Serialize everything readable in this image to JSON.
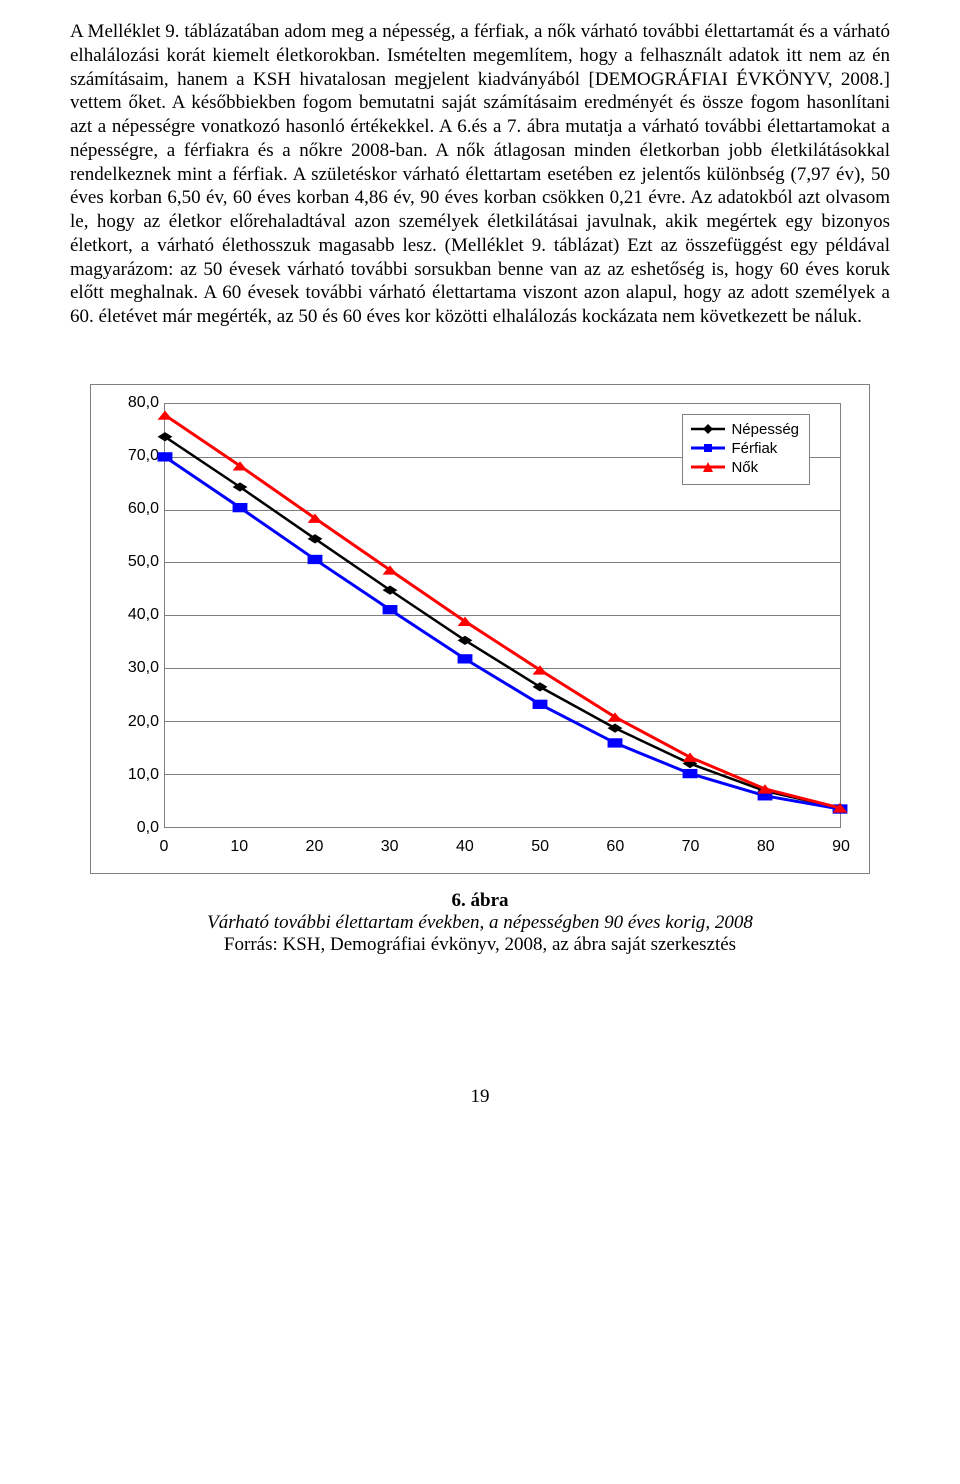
{
  "body_text": "A Melléklet 9. táblázatában adom meg a népesség, a férfiak, a nők várható további élettartamát és a várható elhalálozási korát kiemelt életkorokban. Ismételten megemlítem, hogy a felhasznált adatok itt nem az én számításaim, hanem a KSH hivatalosan megjelent kiadványából [DEMOGRÁFIAI ÉVKÖNYV, 2008.] vettem őket. A későbbiekben fogom bemutatni saját számításaim eredményét és össze fogom hasonlítani azt a népességre vonatkozó hasonló értékekkel. A 6.és a 7. ábra mutatja a várható további élettartamokat a népességre, a férfiakra és a nőkre 2008-ban. A nők átlagosan minden életkorban jobb életkilátásokkal rendelkeznek mint a férfiak. A születéskor várható élettartam esetében ez jelentős különbség (7,97 év), 50 éves korban 6,50 év, 60 éves korban 4,86 év, 90 éves korban csökken 0,21 évre. Az adatokból azt olvasom le, hogy az életkor előrehaladtával azon személyek életkilátásai javulnak, akik megértek egy bizonyos életkort, a várható élethosszuk magasabb lesz. (Melléklet 9. táblázat) Ezt az összefüggést egy példával magyarázom: az 50 évesek várható további sorsukban benne van az az eshetőség is, hogy 60 éves koruk előtt meghalnak. A 60 évesek további várható élettartama viszont azon alapul, hogy az adott személyek a 60. életévet már megérték, az 50 és 60 éves kor közötti elhalálozás kockázata nem következett be náluk.",
  "chart": {
    "type": "line",
    "ylim": [
      0,
      80
    ],
    "ytick_step": 10,
    "xlim": [
      0,
      90
    ],
    "xtick_step": 10,
    "x_values": [
      0,
      10,
      20,
      30,
      40,
      50,
      60,
      70,
      80,
      90
    ],
    "series": [
      {
        "name": "Népesség",
        "color": "#000000",
        "marker": "diamond",
        "line_width": 2.5,
        "values": [
          73.8,
          64.3,
          54.5,
          44.8,
          35.3,
          26.5,
          18.7,
          12.0,
          6.8,
          3.6
        ]
      },
      {
        "name": "Férfiak",
        "color": "#0000ff",
        "marker": "square",
        "line_width": 3,
        "values": [
          70.0,
          60.4,
          50.6,
          41.1,
          31.8,
          23.2,
          15.9,
          10.1,
          5.9,
          3.4
        ]
      },
      {
        "name": "Nők",
        "color": "#ff0000",
        "marker": "triangle",
        "line_width": 3,
        "values": [
          77.9,
          68.3,
          58.4,
          48.6,
          38.9,
          29.7,
          20.8,
          13.2,
          7.2,
          3.6
        ]
      }
    ],
    "background_color": "#ffffff",
    "grid_color": "#808080",
    "tick_font_family": "Arial",
    "tick_fontsize": 16,
    "legend_position": "top-right"
  },
  "caption": {
    "fig_no": "6. ábra",
    "title_italic": "Várható további élettartam években, a népességben 90 éves korig, 2008",
    "source": "Forrás: KSH, Demográfiai évkönyv, 2008, az ábra saját szerkesztés"
  },
  "page_number": "19"
}
